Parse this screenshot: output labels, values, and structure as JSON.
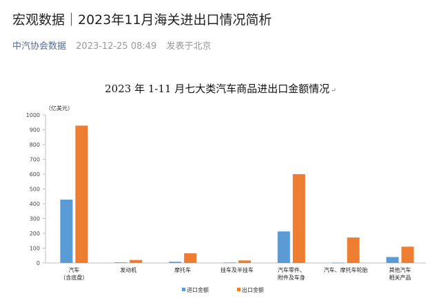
{
  "article": {
    "headline": "宏观数据｜2023年11月海关进出口情况简析",
    "source": "中汽协会数据",
    "datetime": "2023-12-25 08:49",
    "location": "发表于北京"
  },
  "chart_data": {
    "type": "bar",
    "title": "2023 年 1-11 月七大类汽车商品进出口金额情况",
    "title_mark": "↵",
    "unit_label": "（亿美元）",
    "ylim": [
      0,
      1000
    ],
    "yticks": [
      0,
      100,
      200,
      300,
      400,
      500,
      600,
      700,
      800,
      900,
      1000
    ],
    "grid": false,
    "legend_position": "bottom-left",
    "categories": [
      [
        "汽车",
        "（含底盘）"
      ],
      [
        "发动机"
      ],
      [
        "摩托车"
      ],
      [
        "挂车及半挂车"
      ],
      [
        "汽车零件、",
        "附件及车身"
      ],
      [
        "汽车、摩托车轮胎"
      ],
      [
        "其他汽车",
        "相关产品"
      ]
    ],
    "series": [
      {
        "name": "进口金额",
        "color": "#5b9bd5",
        "values": [
          428,
          4,
          8,
          3,
          213,
          2,
          40
        ]
      },
      {
        "name": "出口金额",
        "color": "#ed7d31",
        "values": [
          928,
          20,
          65,
          17,
          600,
          172,
          110
        ]
      }
    ]
  }
}
